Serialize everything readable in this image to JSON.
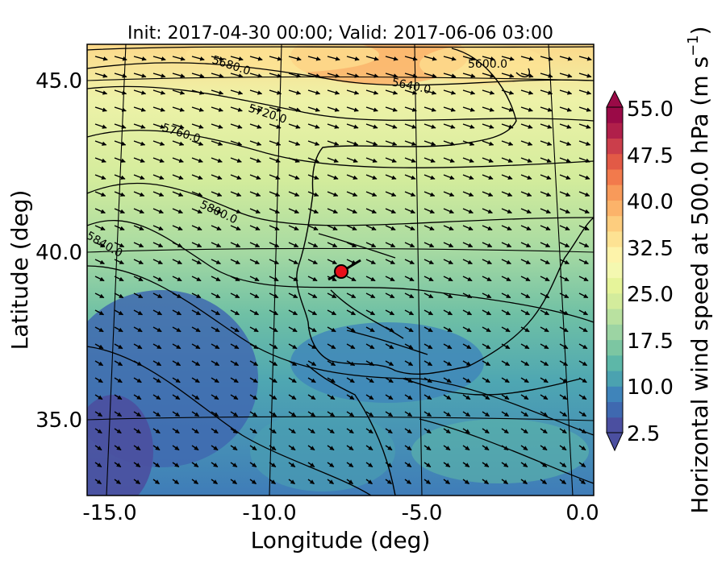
{
  "title": "Init: 2017-04-30 00:00; Valid: 2017-06-06 03:00",
  "xlabel": "Longitude (deg)",
  "ylabel": "Latitude (deg)",
  "colorbar": {
    "label": "Horizontal wind speed at 500.0 hPa (m s",
    "label_sup": "−1",
    "label_close": ")",
    "levels": [
      2.5,
      5,
      7.5,
      10,
      12.5,
      15,
      17.5,
      20,
      22.5,
      25,
      27.5,
      30,
      32.5,
      35,
      37.5,
      40,
      42.5,
      45,
      47.5,
      50,
      52.5,
      55
    ],
    "tick_labels": [
      "55.0",
      "47.5",
      "40.0",
      "32.5",
      "25.0",
      "17.5",
      "10.0",
      "2.5"
    ],
    "colors": [
      "#4b4fa0",
      "#3f69b0",
      "#3f84ba",
      "#4ba2b0",
      "#5db7a8",
      "#7cc6a2",
      "#9cd4a3",
      "#b9e1a0",
      "#d3ec9c",
      "#e6f49a",
      "#f4f8b0",
      "#fdf3aa",
      "#fde293",
      "#fdcd7e",
      "#fcb36a",
      "#f89a5a",
      "#f27a4c",
      "#e25a46",
      "#cb3e4b",
      "#b01f4a",
      "#9a0a47"
    ]
  },
  "map": {
    "x_ticks": [
      "-15.0",
      "-10.0",
      "-5.0",
      "0.0"
    ],
    "y_ticks": [
      "45.0",
      "40.0",
      "35.0"
    ]
  },
  "contour_labels": [
    "5680.0",
    "5600.0",
    "5640.0",
    "5720.0",
    "5760.0",
    "5800.0",
    "5840.0"
  ],
  "marker": {
    "color": "#e8101a"
  }
}
